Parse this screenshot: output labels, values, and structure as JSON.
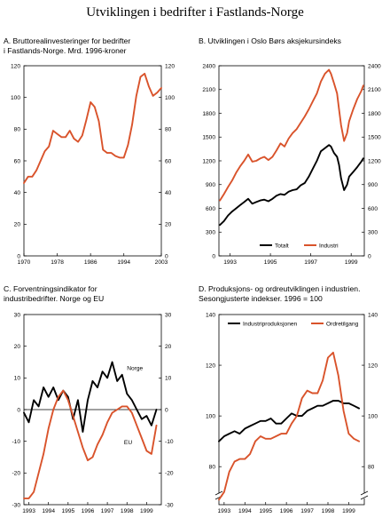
{
  "title": "Utviklingen i bedrifter i Fastlands-Norge",
  "colors": {
    "primary": "#d9532b",
    "secondary": "#000000",
    "axis": "#000000"
  },
  "chart_data": [
    {
      "id": "A",
      "type": "line",
      "title_lines": [
        "A.  Bruttorealinvesteringer for bedrifter",
        "     i Fastlands-Norge. Mrd. 1996-kroner"
      ],
      "xlim": [
        1970,
        2003
      ],
      "ylim": [
        0,
        120
      ],
      "y_ticks": [
        0,
        20,
        40,
        60,
        80,
        100,
        120
      ],
      "x_tick_labels": [
        {
          "x": 1970,
          "label": "1970"
        },
        {
          "x": 1978,
          "label": "1978"
        },
        {
          "x": 1986,
          "label": "1986"
        },
        {
          "x": 1994,
          "label": "1994"
        },
        {
          "x": 2003,
          "label": "2003"
        }
      ],
      "series": [
        {
          "color": "primary",
          "x": [
            1970,
            1971,
            1972,
            1973,
            1974,
            1975,
            1976,
            1977,
            1978,
            1979,
            1980,
            1981,
            1982,
            1983,
            1984,
            1985,
            1986,
            1987,
            1988,
            1989,
            1990,
            1991,
            1992,
            1993,
            1994,
            1995,
            1996,
            1997,
            1998,
            1999,
            2000,
            2001,
            2002,
            2003
          ],
          "y": [
            46,
            50,
            50,
            54,
            60,
            66,
            69,
            79,
            77,
            75,
            75,
            79,
            74,
            72,
            76,
            86,
            97,
            94,
            85,
            67,
            65,
            65,
            63,
            62,
            62,
            70,
            83,
            101,
            113,
            115,
            107,
            101,
            103,
            106
          ]
        }
      ]
    },
    {
      "id": "B",
      "type": "line",
      "title_lines": [
        "B.  Utviklingen i Oslo Børs aksjekursindeks"
      ],
      "xlim": [
        1992.55,
        1999.75
      ],
      "ylim": [
        0,
        2400
      ],
      "y_ticks": [
        0,
        300,
        600,
        900,
        1200,
        1500,
        1800,
        2100,
        2400
      ],
      "x_tick_labels": [
        {
          "x": 1993.1,
          "label": "1993"
        },
        {
          "x": 1995.1,
          "label": "1995"
        },
        {
          "x": 1997.1,
          "label": "1997"
        },
        {
          "x": 1999.1,
          "label": "1999"
        }
      ],
      "legend": "bottom-center",
      "series": [
        {
          "name": "Totalt",
          "color": "secondary",
          "x": [
            1992.6,
            1992.8,
            1993.0,
            1993.2,
            1993.4,
            1993.6,
            1993.8,
            1994.0,
            1994.2,
            1994.4,
            1994.6,
            1994.8,
            1995.0,
            1995.2,
            1995.4,
            1995.6,
            1995.8,
            1996.0,
            1996.2,
            1996.4,
            1996.6,
            1996.8,
            1997.0,
            1997.2,
            1997.4,
            1997.6,
            1997.8,
            1998.0,
            1998.1,
            1998.25,
            1998.4,
            1998.5,
            1998.6,
            1998.75,
            1998.9,
            1999.0,
            1999.2,
            1999.4,
            1999.6,
            1999.7
          ],
          "y": [
            390,
            440,
            510,
            560,
            600,
            640,
            680,
            720,
            660,
            680,
            700,
            710,
            690,
            720,
            760,
            780,
            770,
            810,
            830,
            840,
            890,
            920,
            1000,
            1100,
            1200,
            1320,
            1360,
            1400,
            1380,
            1300,
            1250,
            1150,
            980,
            830,
            900,
            1000,
            1060,
            1120,
            1190,
            1230
          ]
        },
        {
          "name": "Industri",
          "color": "primary",
          "x": [
            1992.6,
            1992.8,
            1993.0,
            1993.2,
            1993.4,
            1993.6,
            1993.8,
            1994.0,
            1994.2,
            1994.4,
            1994.6,
            1994.8,
            1995.0,
            1995.2,
            1995.4,
            1995.6,
            1995.8,
            1996.0,
            1996.2,
            1996.4,
            1996.6,
            1996.8,
            1997.0,
            1997.2,
            1997.4,
            1997.6,
            1997.8,
            1998.0,
            1998.1,
            1998.25,
            1998.4,
            1998.5,
            1998.6,
            1998.75,
            1998.9,
            1999.0,
            1999.2,
            1999.4,
            1999.6,
            1999.7
          ],
          "y": [
            700,
            780,
            870,
            950,
            1050,
            1130,
            1200,
            1280,
            1190,
            1200,
            1230,
            1250,
            1210,
            1250,
            1330,
            1420,
            1380,
            1480,
            1550,
            1600,
            1680,
            1760,
            1850,
            1950,
            2050,
            2200,
            2300,
            2350,
            2300,
            2180,
            2050,
            1850,
            1650,
            1450,
            1550,
            1700,
            1850,
            1980,
            2080,
            2150
          ]
        }
      ]
    },
    {
      "id": "C",
      "type": "line",
      "title_lines": [
        "C.  Forventningsindikator for",
        "     industribedrifter. Norge og EU"
      ],
      "xlim": [
        1992.75,
        1999.75
      ],
      "ylim": [
        -30,
        30
      ],
      "y_ticks": [
        -30,
        -20,
        -10,
        0,
        10,
        20,
        30
      ],
      "x_tick_labels": [
        {
          "x": 1993,
          "label": "1993"
        },
        {
          "x": 1994,
          "label": "1994"
        },
        {
          "x": 1995,
          "label": "1995"
        },
        {
          "x": 1996,
          "label": "1996"
        },
        {
          "x": 1997,
          "label": "1997"
        },
        {
          "x": 1998,
          "label": "1998"
        },
        {
          "x": 1999,
          "label": "1999"
        }
      ],
      "series": [
        {
          "name": "Norge",
          "color": "secondary",
          "x": [
            1992.75,
            1993.0,
            1993.25,
            1993.5,
            1993.75,
            1994.0,
            1994.25,
            1994.5,
            1994.75,
            1995.0,
            1995.25,
            1995.5,
            1995.75,
            1996.0,
            1996.25,
            1996.5,
            1996.75,
            1997.0,
            1997.25,
            1997.5,
            1997.75,
            1998.0,
            1998.25,
            1998.5,
            1998.75,
            1999.0,
            1999.25,
            1999.5
          ],
          "y": [
            -1,
            -4,
            3,
            1,
            7,
            4,
            7,
            3,
            6,
            4,
            -3,
            3,
            -7,
            3,
            9,
            7,
            12,
            10,
            15,
            9,
            11,
            5,
            3,
            0,
            -3,
            -2,
            -5,
            0
          ]
        },
        {
          "name": "EU",
          "color": "primary",
          "x": [
            1992.75,
            1993.0,
            1993.25,
            1993.5,
            1993.75,
            1994.0,
            1994.25,
            1994.5,
            1994.75,
            1995.0,
            1995.25,
            1995.5,
            1995.75,
            1996.0,
            1996.25,
            1996.5,
            1996.75,
            1997.0,
            1997.25,
            1997.5,
            1997.75,
            1998.0,
            1998.25,
            1998.5,
            1998.75,
            1999.0,
            1999.25,
            1999.5
          ],
          "y": [
            -28,
            -28,
            -26,
            -20,
            -14,
            -6,
            0,
            4,
            6,
            3,
            -2,
            -7,
            -12,
            -16,
            -15,
            -11,
            -8,
            -4,
            -1,
            0,
            1,
            1,
            -1,
            -5,
            -9,
            -13,
            -14,
            -5
          ]
        }
      ],
      "annotations": [
        "Norge",
        "EU"
      ]
    },
    {
      "id": "D",
      "type": "line",
      "title_lines": [
        "D.  Produksjons- og ordreutviklingen i industrien.",
        "     Sesongjusterte indekser. 1996 = 100"
      ],
      "xlim": [
        1992.75,
        1999.75
      ],
      "ylim": [
        65,
        140
      ],
      "y_ticks": [
        80,
        100,
        120,
        140
      ],
      "axis_break": true,
      "x_tick_labels": [
        {
          "x": 1993,
          "label": "1993"
        },
        {
          "x": 1994,
          "label": "1994"
        },
        {
          "x": 1995,
          "label": "1995"
        },
        {
          "x": 1996,
          "label": "1996"
        },
        {
          "x": 1997,
          "label": "1997"
        },
        {
          "x": 1998,
          "label": "1998"
        },
        {
          "x": 1999,
          "label": "1999"
        }
      ],
      "legend": "top",
      "series": [
        {
          "name": "Industriproduksjonen",
          "color": "secondary",
          "x": [
            1992.75,
            1993.0,
            1993.25,
            1993.5,
            1993.75,
            1994.0,
            1994.25,
            1994.5,
            1994.75,
            1995.0,
            1995.25,
            1995.5,
            1995.75,
            1996.0,
            1996.25,
            1996.5,
            1996.75,
            1997.0,
            1997.25,
            1997.5,
            1997.75,
            1998.0,
            1998.25,
            1998.5,
            1998.75,
            1999.0,
            1999.25,
            1999.5
          ],
          "y": [
            90,
            92,
            93,
            94,
            93,
            95,
            96,
            97,
            98,
            98,
            99,
            97,
            97,
            99,
            101,
            100,
            100,
            102,
            103,
            104,
            104,
            105,
            106,
            106,
            105,
            105,
            104,
            103
          ]
        },
        {
          "name": "Ordretilgang",
          "color": "primary",
          "x": [
            1992.75,
            1993.0,
            1993.25,
            1993.5,
            1993.75,
            1994.0,
            1994.25,
            1994.5,
            1994.75,
            1995.0,
            1995.25,
            1995.5,
            1995.75,
            1996.0,
            1996.25,
            1996.5,
            1996.75,
            1997.0,
            1997.25,
            1997.5,
            1997.75,
            1998.0,
            1998.25,
            1998.5,
            1998.75,
            1999.0,
            1999.25,
            1999.5
          ],
          "y": [
            67,
            70,
            78,
            82,
            83,
            83,
            85,
            90,
            92,
            91,
            91,
            92,
            93,
            93,
            97,
            100,
            107,
            110,
            109,
            109,
            114,
            123,
            125,
            116,
            102,
            93,
            91,
            90
          ]
        }
      ]
    }
  ]
}
